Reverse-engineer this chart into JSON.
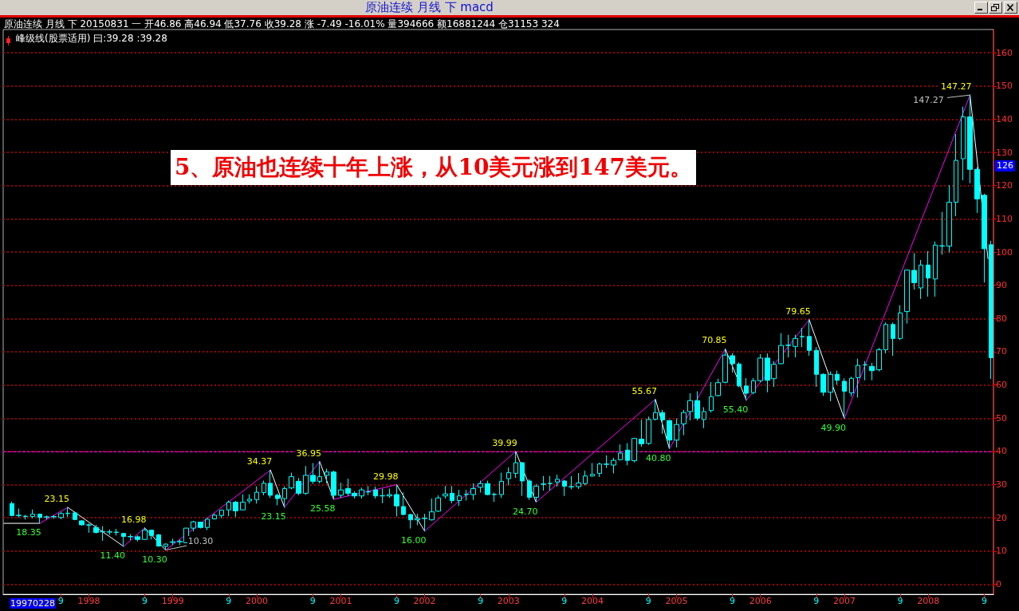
{
  "chart_data": {
    "type": "candlestick",
    "title": "原油连续 月线 下 macd",
    "subtitle": "原油连续 月线 下 20150831 一 开46.86 高46.94 低37.76 收39.28 涨 -7.49 -16.01% 量394666 额16881244 仓31153 324",
    "annotations": [
      "峰级线(股票适用) 曰:39.28 :39.28",
      "5、原油也连续十年上涨，从10美元涨到147美元。",
      "19970228",
      {
        "text": "10.30",
        "x": "1999-03",
        "y": 11.6
      },
      {
        "text": "147.27",
        "x": "2008-03-25",
        "y": 146.5
      },
      {
        "text": "126",
        "y": 126
      }
    ],
    "x": [
      "1997-02",
      "1997-03",
      "1997-04",
      "1997-05",
      "1997-06",
      "1997-07",
      "1997-08",
      "1997-09",
      "1997-10",
      "1997-11",
      "1997-12",
      "1998-01",
      "1998-02",
      "1998-03",
      "1998-04",
      "1998-05",
      "1998-06",
      "1998-07",
      "1998-08",
      "1998-09",
      "1998-10",
      "1998-11",
      "1998-12",
      "1999-01",
      "1999-02",
      "1999-03",
      "1999-04",
      "1999-05",
      "1999-06",
      "1999-07",
      "1999-08",
      "1999-09",
      "1999-10",
      "1999-11",
      "1999-12",
      "2000-01",
      "2000-02",
      "2000-03",
      "2000-04",
      "2000-05",
      "2000-06",
      "2000-07",
      "2000-08",
      "2000-09",
      "2000-10",
      "2000-11",
      "2000-12",
      "2001-01",
      "2001-02",
      "2001-03",
      "2001-04",
      "2001-05",
      "2001-06",
      "2001-07",
      "2001-08",
      "2001-09",
      "2001-10",
      "2001-11",
      "2001-12",
      "2002-01",
      "2002-02",
      "2002-03",
      "2002-04",
      "2002-05",
      "2002-06",
      "2002-07",
      "2002-08",
      "2002-09",
      "2002-10",
      "2002-11",
      "2002-12",
      "2003-01",
      "2003-02",
      "2003-03",
      "2003-04",
      "2003-05",
      "2003-06",
      "2003-07",
      "2003-08",
      "2003-09",
      "2003-10",
      "2003-11",
      "2003-12",
      "2004-01",
      "2004-02",
      "2004-03",
      "2004-04",
      "2004-05",
      "2004-06",
      "2004-07",
      "2004-08",
      "2004-09",
      "2004-10",
      "2004-11",
      "2004-12",
      "2005-01",
      "2005-02",
      "2005-03",
      "2005-04",
      "2005-05",
      "2005-06",
      "2005-07",
      "2005-08",
      "2005-09",
      "2005-10",
      "2005-11",
      "2005-12",
      "2006-01",
      "2006-02",
      "2006-03",
      "2006-04",
      "2006-05",
      "2006-06",
      "2006-07",
      "2006-08",
      "2006-09",
      "2006-10",
      "2006-11",
      "2006-12",
      "2007-01",
      "2007-02",
      "2007-03",
      "2007-04",
      "2007-05",
      "2007-06",
      "2007-07",
      "2007-08",
      "2007-09",
      "2007-10",
      "2007-11",
      "2007-12",
      "2008-01",
      "2008-02",
      "2008-03",
      "2008-04",
      "2008-05",
      "2008-06",
      "2008-07",
      "2008-08",
      "2008-09",
      "2008-10"
    ],
    "ohlc": [
      [
        24.3,
        24.9,
        20.5,
        20.7
      ],
      [
        20.7,
        22.8,
        20.1,
        20.8
      ],
      [
        20.5,
        20.9,
        19.5,
        20.4
      ],
      [
        20.4,
        22.5,
        19.9,
        21.1
      ],
      [
        21.1,
        21.3,
        18.35,
        20.1
      ],
      [
        20.2,
        20.7,
        19.5,
        20.3
      ],
      [
        20.3,
        20.8,
        19.7,
        20.4
      ],
      [
        20.1,
        21.8,
        19.6,
        21.3
      ],
      [
        21.3,
        23.15,
        20.3,
        21.4
      ],
      [
        21.5,
        21.9,
        19.3,
        19.5
      ],
      [
        19.1,
        19.3,
        17.7,
        17.9
      ],
      [
        17.9,
        18.3,
        15.5,
        17.8
      ],
      [
        17.1,
        17.9,
        15.3,
        15.6
      ],
      [
        15.8,
        17.5,
        13.1,
        15.9
      ],
      [
        15.7,
        16.5,
        14.9,
        15.8
      ],
      [
        15.7,
        16.7,
        14.7,
        15.6
      ],
      [
        15.3,
        15.5,
        11.4,
        14.4
      ],
      [
        14.4,
        15.1,
        13.3,
        14.3
      ],
      [
        14.3,
        14.7,
        12.9,
        13.5
      ],
      [
        13.5,
        16.98,
        13.4,
        16.3
      ],
      [
        16.3,
        16.4,
        13.5,
        14.7
      ],
      [
        14.9,
        15.1,
        11.3,
        11.5
      ],
      [
        11.4,
        12.3,
        10.3,
        12.1
      ],
      [
        12.6,
        13.7,
        11.8,
        12.8
      ],
      [
        12.8,
        13.5,
        11.8,
        12.9
      ],
      [
        12.5,
        17.0,
        12.4,
        16.9
      ],
      [
        16.9,
        19.1,
        15.9,
        18.8
      ],
      [
        18.7,
        18.8,
        16.8,
        17.1
      ],
      [
        17.1,
        19.9,
        16.3,
        19.6
      ],
      [
        19.7,
        21.3,
        19.5,
        20.8
      ],
      [
        20.7,
        22.4,
        19.9,
        22.3
      ],
      [
        22.4,
        25.2,
        20.5,
        24.7
      ],
      [
        24.7,
        25.1,
        20.3,
        22.1
      ],
      [
        22.4,
        27.1,
        22.3,
        24.7
      ],
      [
        25.1,
        27.1,
        24.3,
        25.6
      ],
      [
        25.5,
        29.5,
        24.3,
        27.7
      ],
      [
        27.6,
        31.2,
        26.8,
        30.4
      ],
      [
        30.4,
        34.37,
        26.0,
        26.8
      ],
      [
        26.8,
        27.3,
        23.8,
        25.8
      ],
      [
        25.8,
        29.5,
        23.15,
        28.8
      ],
      [
        29.0,
        33.6,
        28.6,
        32.4
      ],
      [
        31.0,
        32.0,
        26.8,
        27.4
      ],
      [
        27.4,
        35.6,
        26.9,
        32.8
      ],
      [
        32.8,
        36.5,
        30.2,
        31.0
      ],
      [
        31.0,
        36.95,
        30.4,
        32.4
      ],
      [
        32.8,
        34.8,
        30.4,
        33.8
      ],
      [
        33.8,
        34.2,
        25.58,
        26.8
      ],
      [
        26.8,
        30.6,
        26.0,
        28.4
      ],
      [
        28.8,
        31.8,
        26.6,
        27.4
      ],
      [
        27.4,
        28.0,
        25.8,
        26.6
      ],
      [
        26.6,
        29.1,
        25.8,
        28.4
      ],
      [
        27.8,
        29.6,
        26.8,
        27.9
      ],
      [
        28.4,
        29.4,
        25.8,
        26.6
      ],
      [
        26.6,
        28.8,
        24.4,
        26.7
      ],
      [
        26.6,
        28.8,
        26.0,
        27.0
      ],
      [
        27.0,
        29.98,
        20.4,
        23.6
      ],
      [
        23.4,
        27.6,
        20.8,
        21.0
      ],
      [
        21.0,
        21.2,
        16.8,
        19.4
      ],
      [
        19.4,
        21.2,
        17.8,
        19.8
      ],
      [
        19.8,
        21.2,
        16.0,
        19.9
      ],
      [
        19.4,
        25.8,
        19.2,
        21.8
      ],
      [
        22.0,
        26.8,
        21.8,
        26.0
      ],
      [
        26.6,
        29.6,
        25.8,
        27.2
      ],
      [
        27.4,
        29.6,
        24.4,
        25.2
      ],
      [
        25.2,
        28.4,
        23.6,
        26.6
      ],
      [
        27.0,
        28.4,
        25.2,
        27.1
      ],
      [
        27.0,
        30.4,
        25.4,
        28.8
      ],
      [
        29.2,
        31.2,
        27.6,
        30.3
      ],
      [
        30.3,
        31.2,
        26.8,
        27.0
      ],
      [
        27.0,
        27.6,
        24.8,
        27.1
      ],
      [
        27.0,
        33.6,
        26.0,
        31.0
      ],
      [
        31.8,
        35.2,
        29.8,
        33.6
      ],
      [
        33.4,
        39.99,
        32.0,
        36.6
      ],
      [
        36.6,
        36.8,
        26.6,
        31.1
      ],
      [
        31.1,
        31.6,
        25.4,
        26.2
      ],
      [
        26.2,
        30.2,
        24.7,
        29.5
      ],
      [
        30.1,
        32.6,
        28.2,
        30.2
      ],
      [
        30.3,
        32.6,
        28.2,
        30.4
      ],
      [
        30.8,
        33.0,
        29.4,
        31.6
      ],
      [
        31.1,
        31.4,
        26.6,
        29.5
      ],
      [
        29.3,
        32.6,
        28.6,
        29.4
      ],
      [
        29.4,
        33.5,
        28.7,
        30.5
      ],
      [
        30.3,
        34.2,
        29.8,
        32.6
      ],
      [
        32.6,
        36.5,
        32.4,
        33.1
      ],
      [
        33.4,
        36.6,
        32.3,
        36.2
      ],
      [
        36.1,
        38.8,
        35.0,
        36.2
      ],
      [
        35.9,
        38.1,
        33.4,
        37.3
      ],
      [
        37.5,
        42.1,
        37.3,
        39.5
      ],
      [
        40.4,
        42.5,
        35.8,
        37.3
      ],
      [
        37.2,
        44.1,
        36.7,
        43.9
      ],
      [
        43.7,
        49.5,
        41.4,
        42.3
      ],
      [
        42.4,
        50.5,
        42.0,
        49.6
      ],
      [
        49.7,
        55.67,
        49.3,
        51.7
      ],
      [
        51.7,
        52.5,
        45.3,
        49.5
      ],
      [
        49.3,
        49.4,
        40.8,
        43.4
      ],
      [
        43.4,
        49.9,
        41.2,
        48.1
      ],
      [
        48.3,
        52.5,
        44.9,
        51.7
      ],
      [
        52.0,
        57.5,
        49.3,
        55.3
      ],
      [
        55.3,
        58.1,
        49.3,
        50.0
      ],
      [
        49.6,
        53.3,
        47.0,
        52.0
      ],
      [
        52.3,
        60.9,
        51.7,
        56.5
      ],
      [
        56.8,
        61.9,
        56.5,
        60.7
      ],
      [
        60.8,
        70.85,
        60.5,
        69.0
      ],
      [
        68.8,
        69.6,
        63.7,
        66.4
      ],
      [
        66.3,
        66.8,
        59.3,
        59.7
      ],
      [
        59.7,
        62.1,
        55.4,
        57.5
      ],
      [
        57.7,
        62.1,
        57.2,
        61.3
      ],
      [
        61.3,
        69.3,
        60.9,
        68.1
      ],
      [
        68.1,
        69.5,
        57.8,
        61.4
      ],
      [
        61.9,
        67.2,
        59.4,
        66.2
      ],
      [
        66.4,
        75.6,
        66.2,
        71.9
      ],
      [
        71.9,
        75.1,
        68.3,
        72.0
      ],
      [
        71.6,
        75.1,
        68.3,
        74.0
      ],
      [
        74.5,
        77.2,
        71.4,
        74.6
      ],
      [
        74.6,
        79.65,
        68.8,
        70.4
      ],
      [
        70.4,
        71.4,
        59.4,
        63.2
      ],
      [
        63.2,
        63.5,
        56.7,
        57.8
      ],
      [
        57.8,
        64.1,
        55.1,
        63.2
      ],
      [
        63.2,
        64.3,
        60.1,
        61.4
      ],
      [
        61.1,
        62.0,
        49.9,
        58.1
      ],
      [
        57.6,
        62.5,
        56.5,
        62.0
      ],
      [
        62.2,
        67.9,
        56.2,
        65.9
      ],
      [
        66.0,
        67.2,
        61.4,
        66.1
      ],
      [
        65.6,
        66.7,
        61.4,
        64.3
      ],
      [
        64.6,
        71.2,
        64.1,
        70.6
      ],
      [
        70.6,
        78.8,
        69.5,
        78.2
      ],
      [
        78.2,
        78.8,
        68.8,
        74.0
      ],
      [
        74.0,
        84.0,
        73.5,
        81.7
      ],
      [
        82.1,
        94.7,
        78.5,
        94.6
      ],
      [
        94.5,
        99.7,
        88.7,
        90.8
      ],
      [
        89.2,
        97.6,
        85.9,
        96.1
      ],
      [
        96.1,
        100.3,
        86.6,
        92.2
      ],
      [
        91.9,
        103.2,
        86.6,
        102.1
      ],
      [
        101.9,
        112.1,
        99.2,
        101.8
      ],
      [
        101.8,
        120.2,
        99.9,
        115.0
      ],
      [
        115.0,
        135.5,
        110.8,
        127.6
      ],
      [
        128.1,
        143.8,
        121.6,
        140.7
      ],
      [
        140.7,
        147.27,
        120.7,
        124.9
      ],
      [
        124.9,
        125.5,
        111.8,
        116.0
      ],
      [
        117.1,
        117.6,
        90.8,
        101.0
      ],
      [
        102.2,
        103.4,
        61.8,
        68.2
      ]
    ],
    "color": "#00ffff",
    "series": [
      {
        "type": "line",
        "color": "#ffffff",
        "x": [
          "1996-12-27",
          "1997-06"
        ],
        "values": [
          18.35,
          18.35
        ],
        "value_labels": [
          null,
          "18.35"
        ]
      },
      {
        "type": "line",
        "color": "#ff00ff",
        "x": [
          "1997-06",
          "1997-10"
        ],
        "values": [
          18.35,
          23.15
        ],
        "value_labels": [
          null,
          "23.15"
        ]
      },
      {
        "type": "line",
        "color": "#ffffff",
        "x": [
          "1997-10",
          "1998-06"
        ],
        "values": [
          23.15,
          11.4
        ],
        "value_labels": [
          null,
          "11.40"
        ]
      },
      {
        "type": "line",
        "color": "#ff00ff",
        "x": [
          "1998-06",
          "1998-09"
        ],
        "values": [
          11.4,
          16.98
        ],
        "value_labels": [
          null,
          "16.98"
        ]
      },
      {
        "type": "line",
        "color": "#ffffff",
        "x": [
          "1998-09",
          "1998-12"
        ],
        "values": [
          16.98,
          10.3
        ],
        "value_labels": [
          null,
          "10.30"
        ]
      },
      {
        "type": "line",
        "color": "#c0c0c0",
        "x": [
          "1998-12",
          "1999-03"
        ],
        "values": [
          10.3,
          11.6
        ]
      },
      {
        "type": "line",
        "color": "#ff00ff",
        "x": [
          "1998-12",
          "2000-03"
        ],
        "values": [
          10.3,
          34.37
        ],
        "value_labels": [
          null,
          "34.37"
        ]
      },
      {
        "type": "line",
        "color": "#ffffff",
        "x": [
          "2000-03",
          "2000-05"
        ],
        "values": [
          34.37,
          23.15
        ],
        "value_labels": [
          null,
          "23.15"
        ]
      },
      {
        "type": "line",
        "color": "#ff00ff",
        "x": [
          "2000-05",
          "2000-10"
        ],
        "values": [
          23.15,
          36.95
        ],
        "value_labels": [
          null,
          "36.95"
        ]
      },
      {
        "type": "line",
        "color": "#ffffff",
        "x": [
          "2000-10",
          "2000-12"
        ],
        "values": [
          36.95,
          25.58
        ],
        "value_labels": [
          null,
          "25.58"
        ]
      },
      {
        "type": "line",
        "color": "#ff00ff",
        "x": [
          "2000-12",
          "2001-09"
        ],
        "values": [
          25.58,
          29.98
        ],
        "value_labels": [
          null,
          "29.98"
        ]
      },
      {
        "type": "line",
        "color": "#ffffff",
        "x": [
          "2001-09",
          "2002-01"
        ],
        "values": [
          29.98,
          16.0
        ],
        "value_labels": [
          null,
          "16.00"
        ]
      },
      {
        "type": "line",
        "color": "#ff00ff",
        "x": [
          "2002-01",
          "2003-02"
        ],
        "values": [
          16.0,
          39.99
        ],
        "value_labels": [
          null,
          "39.99"
        ]
      },
      {
        "type": "line",
        "color": "#ffffff",
        "x": [
          "2003-02",
          "2003-05"
        ],
        "values": [
          39.99,
          24.7
        ],
        "value_labels": [
          null,
          "24.70"
        ]
      },
      {
        "type": "line",
        "color": "#ff00ff",
        "x": [
          "2003-05",
          "2004-10"
        ],
        "values": [
          24.7,
          55.67
        ],
        "value_labels": [
          null,
          "55.67"
        ]
      },
      {
        "type": "line",
        "color": "#ffffff",
        "x": [
          "2004-10",
          "2004-12"
        ],
        "values": [
          55.67,
          40.8
        ],
        "value_labels": [
          null,
          "40.80"
        ]
      },
      {
        "type": "line",
        "color": "#ff00ff",
        "x": [
          "2004-12",
          "2005-08"
        ],
        "values": [
          40.8,
          70.85
        ],
        "value_labels": [
          null,
          "70.85"
        ]
      },
      {
        "type": "line",
        "color": "#ffffff",
        "x": [
          "2005-08",
          "2005-11"
        ],
        "values": [
          70.85,
          55.4
        ],
        "value_labels": [
          null,
          "55.40"
        ]
      },
      {
        "type": "line",
        "color": "#ff00ff",
        "x": [
          "2005-11",
          "2006-08"
        ],
        "values": [
          55.4,
          79.65
        ],
        "value_labels": [
          null,
          "79.65"
        ]
      },
      {
        "type": "line",
        "color": "#ffffff",
        "x": [
          "2006-08",
          "2007-01"
        ],
        "values": [
          79.65,
          49.9
        ],
        "value_labels": [
          null,
          "49.90"
        ]
      },
      {
        "type": "line",
        "color": "#ff00ff",
        "x": [
          "2007-01",
          "2008-07"
        ],
        "values": [
          49.9,
          147.27
        ],
        "value_labels": [
          null,
          "147.27"
        ]
      },
      {
        "type": "line",
        "color": "#c0c0c0",
        "x": [
          "2008-03-25",
          "2008-07"
        ],
        "values": [
          146.5,
          147.27
        ]
      },
      {
        "type": "line",
        "color": "#ffffff",
        "x": [
          "2008-07",
          "2008-09-17"
        ],
        "values": [
          147.27,
          98
        ]
      }
    ],
    "xlim": [
      "1996-12-24",
      "2008-10-11"
    ],
    "xticks": [
      {
        "value": "1997-09",
        "label": "9"
      },
      {
        "value": "1998-01",
        "label": "1998"
      },
      {
        "value": "1998-09",
        "label": "9"
      },
      {
        "value": "1999-01",
        "label": "1999"
      },
      {
        "value": "1999-09",
        "label": "9"
      },
      {
        "value": "2000-01",
        "label": "2000"
      },
      {
        "value": "2000-09",
        "label": "9"
      },
      {
        "value": "2001-01",
        "label": "2001"
      },
      {
        "value": "2001-09",
        "label": "9"
      },
      {
        "value": "2002-01",
        "label": "2002"
      },
      {
        "value": "2002-09",
        "label": "9"
      },
      {
        "value": "2003-01",
        "label": "2003"
      },
      {
        "value": "2003-09",
        "label": "9"
      },
      {
        "value": "2004-01",
        "label": "2004"
      },
      {
        "value": "2004-09",
        "label": "9"
      },
      {
        "value": "2005-01",
        "label": "2005"
      },
      {
        "value": "2005-09",
        "label": "9"
      },
      {
        "value": "2006-01",
        "label": "2006"
      },
      {
        "value": "2006-09",
        "label": "9"
      },
      {
        "value": "2007-01",
        "label": "2007"
      },
      {
        "value": "2007-09",
        "label": "9"
      },
      {
        "value": "2008-01",
        "label": "2008"
      },
      {
        "value": "2008-09",
        "label": "9"
      }
    ],
    "ylim": [
      -3,
      167
    ],
    "yticks": [
      0,
      10,
      20,
      30,
      40,
      50,
      60,
      70,
      80,
      90,
      100,
      110,
      120,
      130,
      140,
      150,
      160
    ],
    "grid": "y",
    "ref_lines": [
      {
        "axis": "y",
        "value": 40,
        "color": "#ff00ff",
        "line_style": "dashed"
      }
    ]
  }
}
